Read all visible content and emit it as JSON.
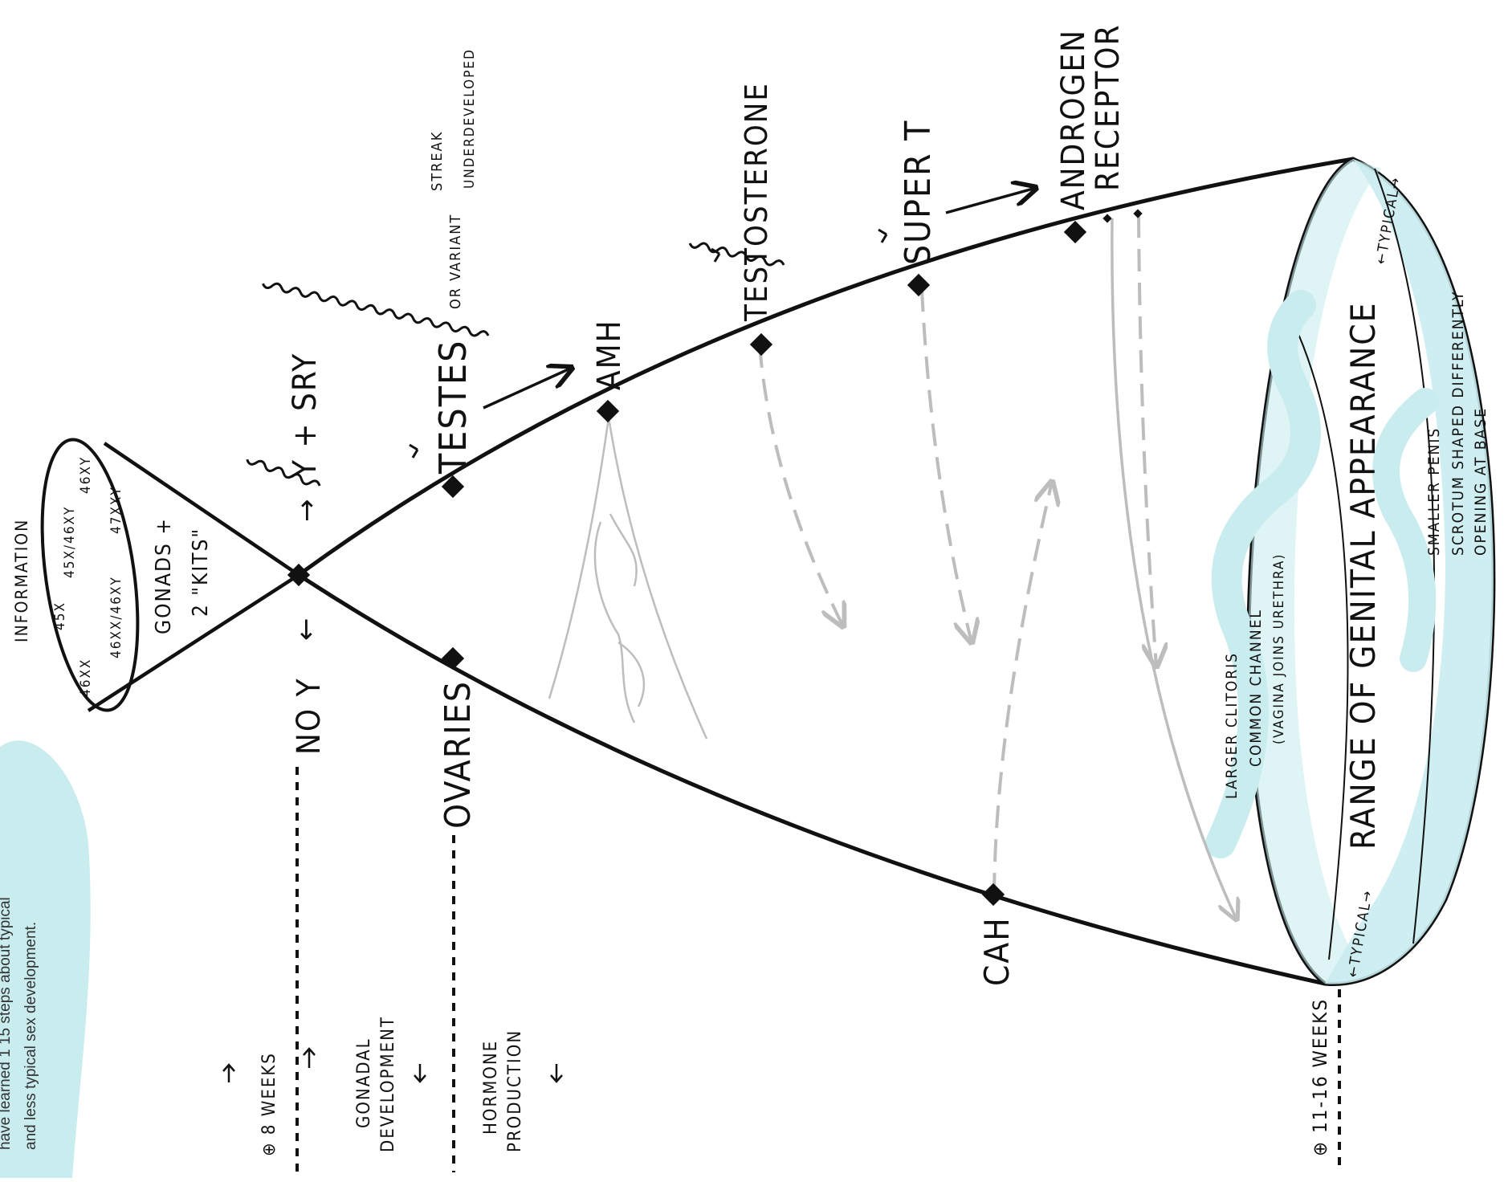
{
  "intro_text": {
    "line1": "have learned 1 15 steps about typical",
    "line2": "and less typical sex development."
  },
  "information_cone": {
    "title": "INFORMATION",
    "karyotypes": [
      "45X",
      "45X/46XY",
      "46XY",
      "46XX",
      "46XX/46XY",
      "47XXY"
    ],
    "gonads_line1": "GONADS +",
    "gonads_line2": "2 \"KITS\""
  },
  "branch": {
    "y_sry": "Y + SRY",
    "no_y": "NO Y",
    "arrow_right": "→",
    "arrow_left": "←"
  },
  "upper_path": {
    "testes": "TESTES",
    "or_variant": "OR VARIANT",
    "streak": "STREAK",
    "underdeveloped": "UNDERDEVELOPED",
    "amh": "AMH",
    "testosterone": "TESTOSTERONE",
    "super_t": "SUPER T",
    "androgen_line1": "ANDROGEN",
    "androgen_line2": "RECEPTOR"
  },
  "lower_path": {
    "ovaries": "OVARIES",
    "cah": "CAH"
  },
  "result": {
    "title": "RANGE OF GENITAL APPEARANCE",
    "typical_left": "←TYPICAL→",
    "typical_right": "←TYPICAL→",
    "left_line1": "LARGER CLITORIS",
    "left_line2": "COMMON CHANNEL",
    "left_line3": "(VAGINA JOINS URETHRA)",
    "right_line1": "SMALLER PENIS",
    "right_line2": "SCROTUM SHAPED DIFFERENTLY",
    "right_line3": "OPENING AT BASE"
  },
  "timeline": {
    "eight_weeks": "⊕ 8 WEEKS",
    "gonadal_line1": "GONADAL",
    "gonadal_line2": "DEVELOPMENT",
    "hormone_line1": "HORMONE",
    "hormone_line2": "PRODUCTION",
    "weeks_11_16": "⊕ 11-16 WEEKS"
  },
  "colors": {
    "accent": "#c9ecef",
    "ink": "#111111",
    "gray": "#bdbdbd"
  }
}
